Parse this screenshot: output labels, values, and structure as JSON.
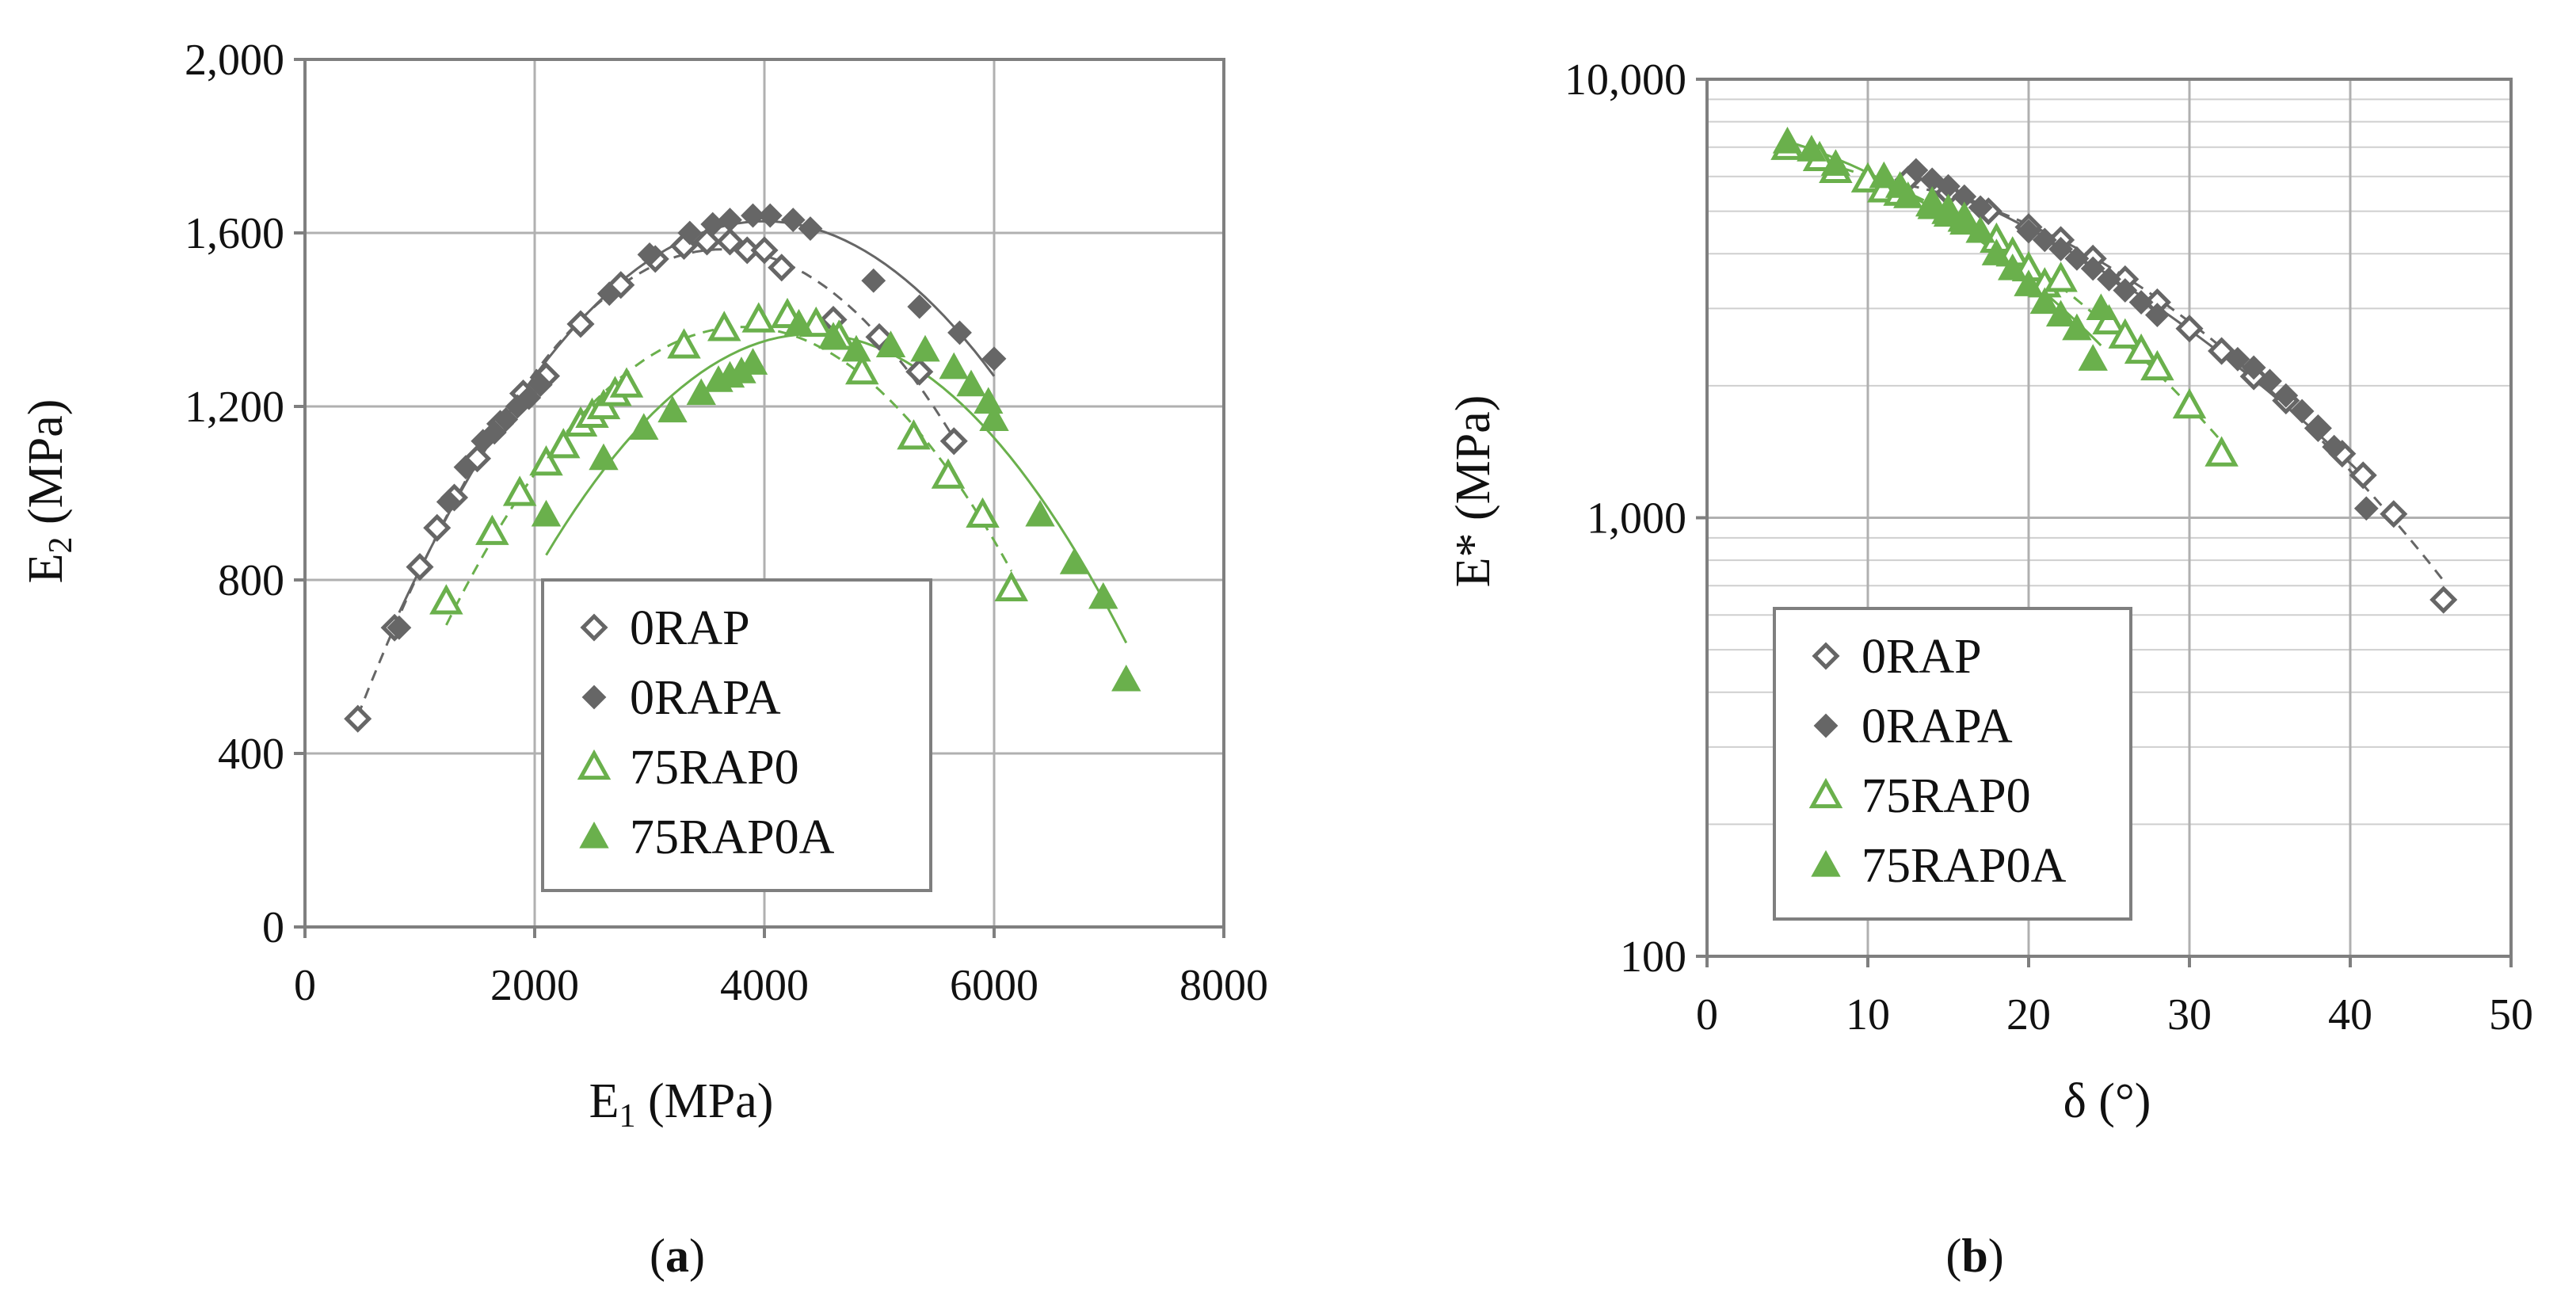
{
  "chart_data": [
    {
      "type": "scatter",
      "panel_label": "a",
      "ylabel": "E2 (MPa)",
      "ylabel_main": "E",
      "ylabel_sub": "2",
      "ylabel_unit": " (MPa)",
      "xlabel": "E1 (MPa)",
      "xlabel_main": "E",
      "xlabel_sub": "1",
      "xlabel_unit": " (MPa)",
      "xlim": [
        0,
        8000
      ],
      "ylim": [
        0,
        2000
      ],
      "xticks": [
        0,
        2000,
        4000,
        6000,
        8000
      ],
      "xtick_labels": [
        "0",
        "2000",
        "4000",
        "6000",
        "8000"
      ],
      "yticks": [
        0,
        400,
        800,
        1200,
        1600,
        2000
      ],
      "ytick_labels": [
        "0",
        "400",
        "800",
        "1,200",
        "1,600",
        "2,000"
      ],
      "grid": true,
      "legend_position": "bottom-center",
      "legend": [
        "0RAP",
        "0RAPA",
        "75RAP0",
        "75RAP0A"
      ],
      "series": [
        {
          "name": "0RAP",
          "marker": "diamond-open",
          "color": "#666666",
          "points": [
            [
              460,
              480
            ],
            [
              780,
              690
            ],
            [
              1000,
              830
            ],
            [
              1150,
              920
            ],
            [
              1300,
              990
            ],
            [
              1500,
              1080
            ],
            [
              1700,
              1160
            ],
            [
              1900,
              1230
            ],
            [
              2100,
              1270
            ],
            [
              2400,
              1390
            ],
            [
              2750,
              1480
            ],
            [
              3050,
              1540
            ],
            [
              3300,
              1570
            ],
            [
              3500,
              1580
            ],
            [
              3700,
              1580
            ],
            [
              3850,
              1560
            ],
            [
              4000,
              1560
            ],
            [
              4150,
              1520
            ],
            [
              4600,
              1400
            ],
            [
              5000,
              1360
            ],
            [
              5350,
              1280
            ],
            [
              5650,
              1120
            ]
          ]
        },
        {
          "name": "0RAPA",
          "marker": "diamond-filled",
          "color": "#666666",
          "points": [
            [
              820,
              690
            ],
            [
              1250,
              980
            ],
            [
              1400,
              1060
            ],
            [
              1550,
              1120
            ],
            [
              1650,
              1140
            ],
            [
              1750,
              1170
            ],
            [
              1850,
              1200
            ],
            [
              1950,
              1220
            ],
            [
              2050,
              1250
            ],
            [
              2650,
              1460
            ],
            [
              3000,
              1550
            ],
            [
              3350,
              1600
            ],
            [
              3550,
              1620
            ],
            [
              3700,
              1630
            ],
            [
              3900,
              1640
            ],
            [
              4050,
              1640
            ],
            [
              4250,
              1630
            ],
            [
              4400,
              1610
            ],
            [
              4950,
              1490
            ],
            [
              5350,
              1430
            ],
            [
              5700,
              1370
            ],
            [
              6000,
              1310
            ]
          ]
        },
        {
          "name": "75RAP0",
          "marker": "triangle-open",
          "color": "#6ab04c",
          "points": [
            [
              1230,
              750
            ],
            [
              1630,
              910
            ],
            [
              1870,
              1000
            ],
            [
              2100,
              1070
            ],
            [
              2250,
              1110
            ],
            [
              2400,
              1160
            ],
            [
              2500,
              1180
            ],
            [
              2600,
              1200
            ],
            [
              2700,
              1230
            ],
            [
              2800,
              1250
            ],
            [
              3300,
              1340
            ],
            [
              3650,
              1380
            ],
            [
              3950,
              1400
            ],
            [
              4200,
              1410
            ],
            [
              4450,
              1390
            ],
            [
              4650,
              1360
            ],
            [
              4850,
              1280
            ],
            [
              5300,
              1130
            ],
            [
              5600,
              1040
            ],
            [
              5900,
              950
            ],
            [
              6150,
              780
            ]
          ]
        },
        {
          "name": "75RAP0A",
          "marker": "triangle-filled",
          "color": "#6ab04c",
          "points": [
            [
              2100,
              950
            ],
            [
              2600,
              1080
            ],
            [
              2950,
              1150
            ],
            [
              3200,
              1190
            ],
            [
              3450,
              1230
            ],
            [
              3600,
              1260
            ],
            [
              3700,
              1270
            ],
            [
              3800,
              1280
            ],
            [
              3900,
              1300
            ],
            [
              4300,
              1390
            ],
            [
              4600,
              1360
            ],
            [
              4800,
              1330
            ],
            [
              5100,
              1340
            ],
            [
              5400,
              1330
            ],
            [
              5650,
              1290
            ],
            [
              5800,
              1250
            ],
            [
              5950,
              1210
            ],
            [
              6000,
              1170
            ],
            [
              6400,
              950
            ],
            [
              6700,
              840
            ],
            [
              6950,
              760
            ],
            [
              7150,
              570
            ]
          ]
        }
      ]
    },
    {
      "type": "scatter",
      "panel_label": "b",
      "ylabel": "E* (MPa)",
      "xlabel": "δ (°)",
      "xlim": [
        0,
        50
      ],
      "ylim": [
        100,
        10000
      ],
      "yscale": "log",
      "xticks": [
        0,
        10,
        20,
        30,
        40,
        50
      ],
      "xtick_labels": [
        "0",
        "10",
        "20",
        "30",
        "40",
        "50"
      ],
      "yticks": [
        100,
        1000,
        10000
      ],
      "ytick_labels": [
        "100",
        "1,000",
        "10,000"
      ],
      "grid": true,
      "legend_position": "bottom-left",
      "legend": [
        "0RAP",
        "0RAPA",
        "75RAP0",
        "75RAP0A"
      ],
      "series": [
        {
          "name": "0RAP",
          "marker": "diamond-open",
          "color": "#666666",
          "points": [
            [
              12.5,
              5900
            ],
            [
              15,
              5500
            ],
            [
              17.5,
              5000
            ],
            [
              20,
              4600
            ],
            [
              22,
              4300
            ],
            [
              24,
              3900
            ],
            [
              26,
              3500
            ],
            [
              28,
              3100
            ],
            [
              30,
              2700
            ],
            [
              32,
              2400
            ],
            [
              34,
              2100
            ],
            [
              36,
              1850
            ],
            [
              38,
              1600
            ],
            [
              39.5,
              1400
            ],
            [
              40.8,
              1250
            ],
            [
              42.7,
              1020
            ],
            [
              45.8,
              650
            ]
          ]
        },
        {
          "name": "0RAPA",
          "marker": "diamond-filled",
          "color": "#666666",
          "points": [
            [
              13,
              6200
            ],
            [
              14,
              5900
            ],
            [
              15,
              5700
            ],
            [
              16,
              5400
            ],
            [
              17,
              5100
            ],
            [
              20,
              4500
            ],
            [
              21,
              4300
            ],
            [
              22,
              4100
            ],
            [
              23,
              3900
            ],
            [
              24,
              3700
            ],
            [
              25,
              3500
            ],
            [
              26,
              3300
            ],
            [
              27,
              3100
            ],
            [
              28,
              2900
            ],
            [
              33,
              2300
            ],
            [
              34,
              2200
            ],
            [
              35,
              2050
            ],
            [
              36,
              1900
            ],
            [
              37,
              1750
            ],
            [
              38,
              1600
            ],
            [
              39,
              1450
            ],
            [
              41,
              1050
            ]
          ]
        },
        {
          "name": "75RAP0",
          "marker": "triangle-open",
          "color": "#6ab04c",
          "points": [
            [
              5,
              7000
            ],
            [
              7,
              6600
            ],
            [
              8,
              6200
            ],
            [
              10,
              5900
            ],
            [
              11,
              5600
            ],
            [
              12,
              5500
            ],
            [
              14,
              5200
            ],
            [
              15,
              5000
            ],
            [
              16,
              4800
            ],
            [
              18,
              4300
            ],
            [
              19,
              4000
            ],
            [
              20,
              3700
            ],
            [
              21,
              3400
            ],
            [
              22,
              3500
            ],
            [
              25,
              2800
            ],
            [
              26,
              2600
            ],
            [
              27,
              2400
            ],
            [
              28,
              2200
            ],
            [
              30,
              1800
            ],
            [
              32,
              1400
            ]
          ]
        },
        {
          "name": "75RAP0A",
          "marker": "triangle-filled",
          "color": "#6ab04c",
          "points": [
            [
              5,
              7200
            ],
            [
              6.5,
              6900
            ],
            [
              8,
              6400
            ],
            [
              11,
              6000
            ],
            [
              12,
              5700
            ],
            [
              12.5,
              5400
            ],
            [
              14,
              5100
            ],
            [
              15,
              4900
            ],
            [
              16,
              4700
            ],
            [
              17,
              4500
            ],
            [
              18,
              4000
            ],
            [
              19,
              3700
            ],
            [
              20,
              3400
            ],
            [
              21,
              3100
            ],
            [
              22,
              2900
            ],
            [
              23,
              2700
            ],
            [
              24,
              2300
            ],
            [
              24.5,
              3000
            ]
          ]
        }
      ]
    }
  ]
}
